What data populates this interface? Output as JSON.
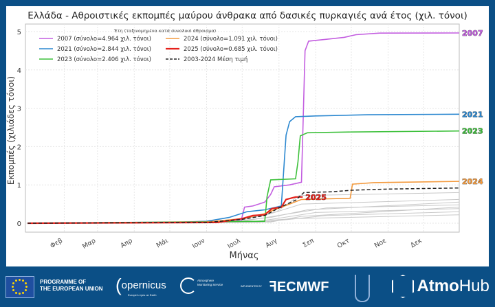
{
  "chart_data": {
    "type": "line",
    "title": "Ελλάδα - Αθροιστικές εκπομπές μαύρου άνθρακα από δασικές πυρκαγιές ανά έτος (χιλ. τόνοι)",
    "xlabel": "Μήνας",
    "ylabel": "Εκπομπές (χιλιάδες τόνοι)",
    "x_tick_labels": [
      "Φεβ",
      "Μαρ",
      "Απρ",
      "Μάι",
      "Ιουν",
      "Ιουλ",
      "Αυγ",
      "Σεπ",
      "Οκτ",
      "Νοε",
      "Δεκ"
    ],
    "y_ticks": [
      0,
      1,
      2,
      3,
      4,
      5
    ],
    "ylim": [
      -0.2,
      5.2
    ],
    "xlim": [
      "01-01",
      "12-31"
    ],
    "grid": true,
    "legend_title": "Έτη (ταξινομημένα κατά συνολικό άθροισμα)",
    "legend_position": "top-left",
    "series": [
      {
        "name": "2007 (σύνολο=4.964 χιλ. τόνοι)",
        "end_label": "2007",
        "color": "#c35ee0",
        "points": [
          [
            "01-01",
            0
          ],
          [
            "06-01",
            0.03
          ],
          [
            "06-30",
            0.05
          ],
          [
            "07-03",
            0.42
          ],
          [
            "07-10",
            0.45
          ],
          [
            "07-20",
            0.55
          ],
          [
            "07-25",
            0.75
          ],
          [
            "07-28",
            0.95
          ],
          [
            "08-10",
            1.0
          ],
          [
            "08-20",
            1.07
          ],
          [
            "08-23",
            4.5
          ],
          [
            "08-26",
            4.75
          ],
          [
            "09-10",
            4.8
          ],
          [
            "09-25",
            4.85
          ],
          [
            "10-05",
            4.92
          ],
          [
            "10-25",
            4.96
          ],
          [
            "12-31",
            4.964
          ]
        ]
      },
      {
        "name": "2021 (σύνολο=2.844 χιλ. τόνοι)",
        "end_label": "2021",
        "color": "#2c88d0",
        "points": [
          [
            "01-01",
            0
          ],
          [
            "05-01",
            0.02
          ],
          [
            "06-01",
            0.05
          ],
          [
            "06-20",
            0.15
          ],
          [
            "07-05",
            0.3
          ],
          [
            "07-20",
            0.35
          ],
          [
            "08-03",
            0.45
          ],
          [
            "08-07",
            2.3
          ],
          [
            "08-10",
            2.65
          ],
          [
            "08-15",
            2.78
          ],
          [
            "09-01",
            2.8
          ],
          [
            "10-15",
            2.83
          ],
          [
            "12-31",
            2.844
          ]
        ]
      },
      {
        "name": "2023 (σύνολο=2.406 χιλ. τόνοι)",
        "end_label": "2023",
        "color": "#3cc03a",
        "points": [
          [
            "01-01",
            0
          ],
          [
            "07-20",
            0.05
          ],
          [
            "07-22",
            0.7
          ],
          [
            "07-25",
            1.13
          ],
          [
            "08-15",
            1.16
          ],
          [
            "08-17",
            1.6
          ],
          [
            "08-19",
            2.28
          ],
          [
            "08-25",
            2.36
          ],
          [
            "10-01",
            2.38
          ],
          [
            "12-31",
            2.406
          ]
        ]
      },
      {
        "name": "2024 (σύνολο=1.091 χιλ. τόνοι)",
        "end_label": "2024",
        "color": "#f39a3e",
        "points": [
          [
            "01-01",
            0
          ],
          [
            "06-01",
            0.03
          ],
          [
            "07-01",
            0.12
          ],
          [
            "07-20",
            0.25
          ],
          [
            "07-28",
            0.35
          ],
          [
            "08-10",
            0.5
          ],
          [
            "08-20",
            0.62
          ],
          [
            "09-30",
            0.65
          ],
          [
            "10-02",
            1.02
          ],
          [
            "10-20",
            1.06
          ],
          [
            "12-31",
            1.091
          ]
        ]
      },
      {
        "name": "2025 (σύνολο=0.685 χιλ. τόνοι)",
        "end_label": "2025",
        "color": "#e5211b",
        "points": [
          [
            "01-01",
            0
          ],
          [
            "06-10",
            0.02
          ],
          [
            "07-01",
            0.12
          ],
          [
            "07-10",
            0.2
          ],
          [
            "07-20",
            0.22
          ],
          [
            "07-26",
            0.38
          ],
          [
            "08-03",
            0.42
          ],
          [
            "08-07",
            0.62
          ],
          [
            "08-15",
            0.685
          ],
          [
            "08-21",
            0.685
          ]
        ]
      },
      {
        "name": "2003-2024 Μέση τιμή",
        "color": "#222222",
        "dashed": true,
        "points": [
          [
            "01-01",
            0
          ],
          [
            "06-01",
            0.02
          ],
          [
            "07-01",
            0.1
          ],
          [
            "07-20",
            0.2
          ],
          [
            "08-01",
            0.4
          ],
          [
            "08-15",
            0.6
          ],
          [
            "08-22",
            0.8
          ],
          [
            "09-15",
            0.82
          ],
          [
            "10-01",
            0.86
          ],
          [
            "11-01",
            0.89
          ],
          [
            "12-31",
            0.92
          ]
        ]
      }
    ],
    "other_years": [
      [
        [
          "01-01",
          0
        ],
        [
          "06-15",
          0.05
        ],
        [
          "07-20",
          0.2
        ],
        [
          "08-20",
          0.5
        ],
        [
          "12-31",
          0.62
        ]
      ],
      [
        [
          "01-01",
          0
        ],
        [
          "06-20",
          0.04
        ],
        [
          "07-25",
          0.15
        ],
        [
          "08-25",
          0.35
        ],
        [
          "12-31",
          0.55
        ]
      ],
      [
        [
          "01-01",
          0
        ],
        [
          "07-01",
          0.05
        ],
        [
          "08-10",
          0.25
        ],
        [
          "09-10",
          0.4
        ],
        [
          "12-31",
          0.48
        ]
      ],
      [
        [
          "01-01",
          0
        ],
        [
          "07-10",
          0.03
        ],
        [
          "08-05",
          0.15
        ],
        [
          "09-01",
          0.28
        ],
        [
          "12-31",
          0.38
        ]
      ],
      [
        [
          "01-01",
          0
        ],
        [
          "07-15",
          0.02
        ],
        [
          "08-10",
          0.1
        ],
        [
          "09-10",
          0.2
        ],
        [
          "12-31",
          0.3
        ]
      ],
      [
        [
          "01-01",
          0
        ],
        [
          "06-25",
          0.06
        ],
        [
          "07-30",
          0.3
        ],
        [
          "08-18",
          0.72
        ],
        [
          "12-31",
          0.8
        ]
      ],
      [
        [
          "01-01",
          0
        ],
        [
          "07-05",
          0.04
        ],
        [
          "08-15",
          0.12
        ],
        [
          "12-31",
          0.22
        ]
      ],
      [
        [
          "01-01",
          0
        ],
        [
          "07-25",
          0.03
        ],
        [
          "08-20",
          0.18
        ],
        [
          "12-31",
          0.42
        ]
      ]
    ]
  },
  "footer": {
    "eu_text_line1": "PROGRAMME OF",
    "eu_text_line2": "THE EUROPEAN UNION",
    "copernicus": "opernicus",
    "copernicus_sub": "Europe's eyes on Earth",
    "cams_line1": "Atmosphere",
    "cams_line2": "Monitoring Service",
    "implemented_by": "IMPLEMENTED BY",
    "ecmwf": "ECMWF",
    "atmohub_bold": "Atmo",
    "atmohub_light": "Hub"
  }
}
